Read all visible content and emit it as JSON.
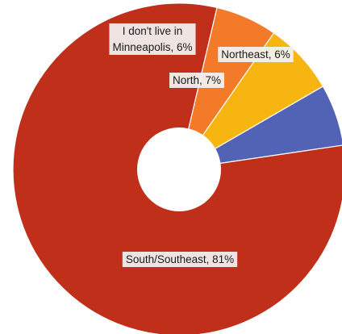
{
  "chart_data": {
    "type": "pie",
    "donut": true,
    "title": "",
    "slices": [
      {
        "label_lines": [
          "Northeast, 6%"
        ],
        "category": "Northeast",
        "value": 6,
        "color": "#5262b5"
      },
      {
        "label_lines": [
          "South/Southeast, 81%"
        ],
        "category": "South/Southeast",
        "value": 81,
        "color": "#bf2f19"
      },
      {
        "label_lines": [
          "I don't live in",
          "Minneapolis, 6%"
        ],
        "category": "I don't live in Minneapolis",
        "value": 6,
        "color": "#f27a28"
      },
      {
        "label_lines": [
          "North, 7%"
        ],
        "category": "North",
        "value": 7,
        "color": "#f7b511"
      }
    ]
  }
}
